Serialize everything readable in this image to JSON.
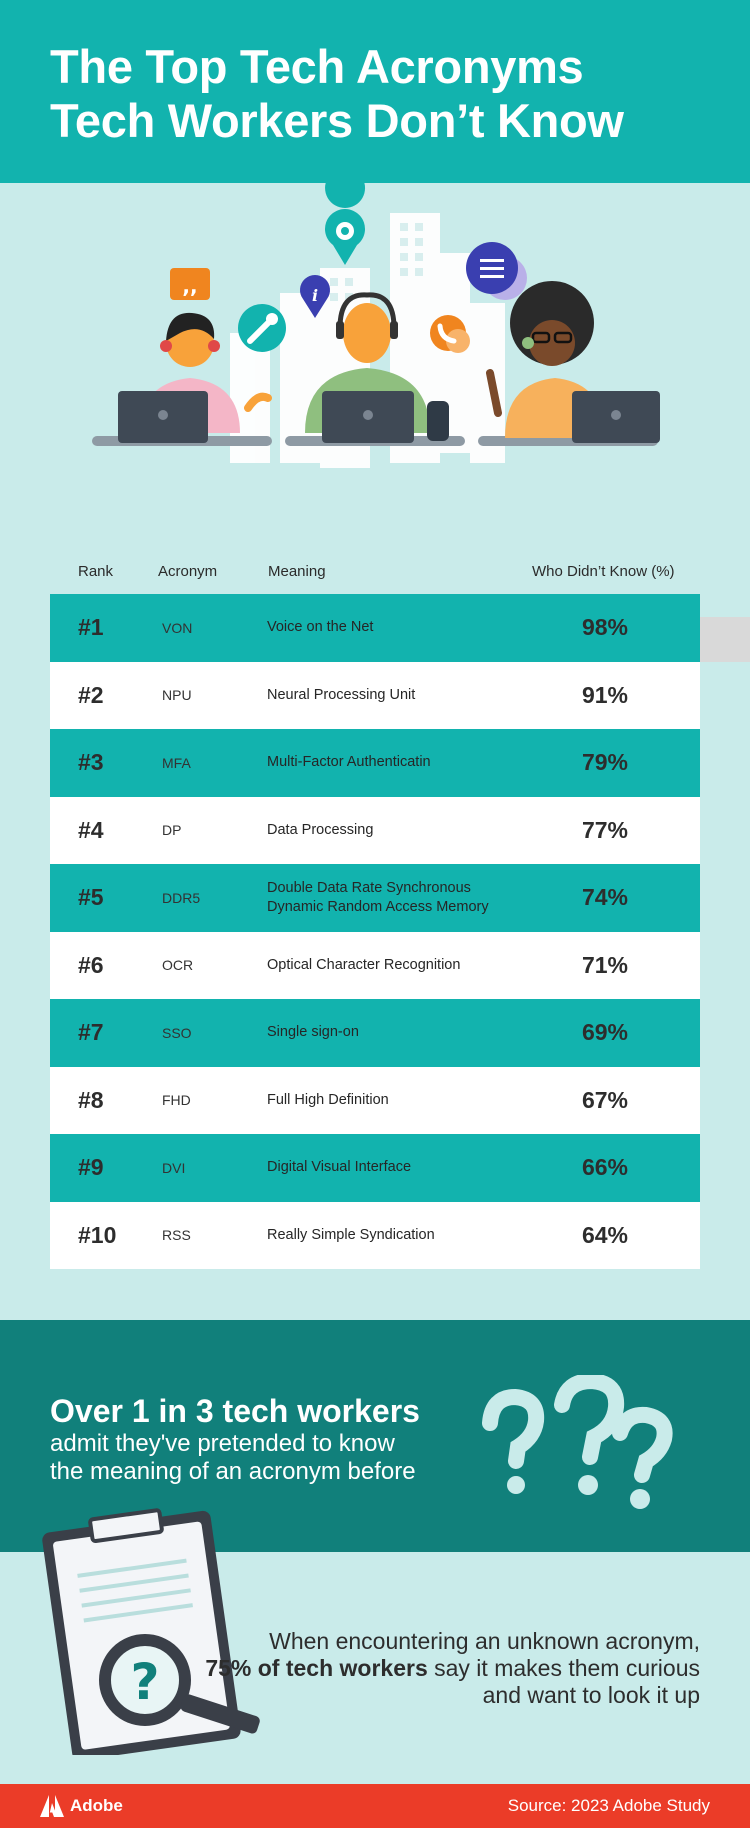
{
  "title_line1": "The Top Tech Acronyms",
  "title_line2": "Tech Workers Don’t Know",
  "columns": {
    "rank": "Rank",
    "acronym": "Acronym",
    "meaning": "Meaning",
    "pct": "Who Didn’t Know (%)"
  },
  "rows": [
    {
      "rank": "#1",
      "acronym": "VON",
      "meaning": "Voice on the Net",
      "pct": "98%"
    },
    {
      "rank": "#2",
      "acronym": "NPU",
      "meaning": "Neural Processing Unit",
      "pct": "91%"
    },
    {
      "rank": "#3",
      "acronym": "MFA",
      "meaning": "Multi-Factor Authenticatin",
      "pct": "79%"
    },
    {
      "rank": "#4",
      "acronym": "DP",
      "meaning": "Data Processing",
      "pct": "77%"
    },
    {
      "rank": "#5",
      "acronym": "DDR5",
      "meaning": "Double Data Rate Synchronous Dynamic Random Access Memory",
      "pct": "74%"
    },
    {
      "rank": "#6",
      "acronym": "OCR",
      "meaning": "Optical Character Recognition",
      "pct": "71%"
    },
    {
      "rank": "#7",
      "acronym": "SSO",
      "meaning": "Single sign-on",
      "pct": "69%"
    },
    {
      "rank": "#8",
      "acronym": "FHD",
      "meaning": "Full High Definition",
      "pct": "67%"
    },
    {
      "rank": "#9",
      "acronym": "DVI",
      "meaning": "Digital Visual Interface",
      "pct": "66%"
    },
    {
      "rank": "#10",
      "acronym": "RSS",
      "meaning": "Really Simple Syndication",
      "pct": "64%"
    }
  ],
  "stat": {
    "headline": "Over 1 in 3 tech workers",
    "subline": "admit they've pretended to know the meaning of an acronym before"
  },
  "curious": {
    "part1": "When encountering an unknown acronym,",
    "bold": "75% of tech workers",
    "part2": "say it makes them curious and want to look it up"
  },
  "footer": {
    "brand": "Adobe",
    "source": "Source: 2023 Adobe Study"
  },
  "colors": {
    "teal": "#12b3ae",
    "dark_teal": "#11807b",
    "light_bg": "#c9ebea",
    "footer_red": "#eb3c28"
  }
}
